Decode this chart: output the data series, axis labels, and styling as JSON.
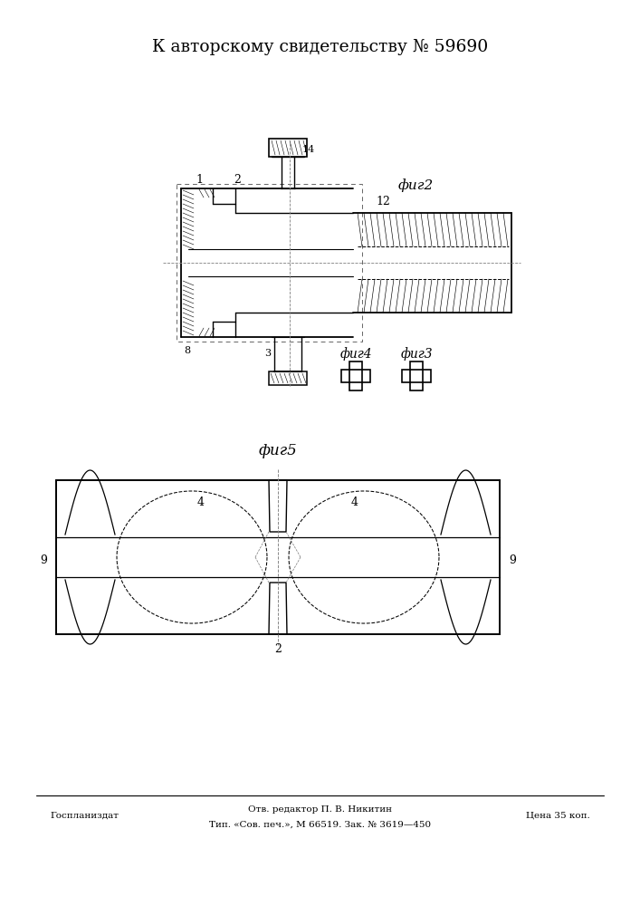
{
  "title": "К авторскому свидетельству № 59690",
  "bg_color": "#ffffff",
  "footer_left": "Госпланиздат",
  "footer_center_top": "Отв. редактор П. В. Никитин",
  "footer_center_bot": "Тип. «Сов. печ.», М 66519. Зак. № 3619—450",
  "footer_right": "Цена 35 коп."
}
